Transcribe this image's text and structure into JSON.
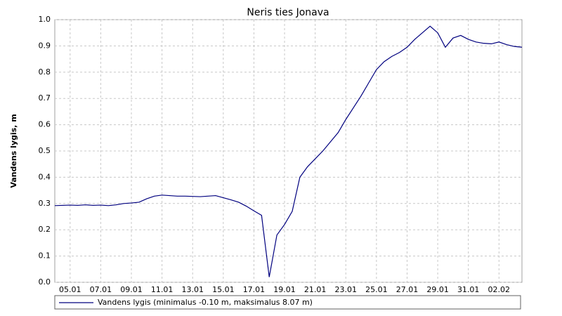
{
  "chart_data": {
    "type": "line",
    "title": "Neris ties Jonava",
    "y_label": "Vandens lygis, m",
    "categories": [
      null,
      null,
      "05.01",
      null,
      null,
      null,
      "07.01",
      null,
      null,
      null,
      "09.01",
      null,
      null,
      null,
      "11.01",
      null,
      null,
      null,
      "13.01",
      null,
      null,
      null,
      "15.01",
      null,
      null,
      null,
      "17.01",
      null,
      null,
      null,
      "19.01",
      null,
      null,
      null,
      "21.01",
      null,
      null,
      null,
      "23.01",
      null,
      null,
      null,
      "25.01",
      null,
      null,
      null,
      "27.01",
      null,
      null,
      null,
      "29.01",
      null,
      null,
      null,
      "31.01",
      null,
      null,
      null,
      "02.02",
      null,
      null,
      null
    ],
    "series": [
      {
        "name": "Vandens lygis (minimalus -0.10 m, maksimalus 8.07 m)",
        "color": "#00007f",
        "values": [
          0.292,
          0.293,
          0.294,
          0.293,
          0.295,
          0.293,
          0.294,
          0.292,
          0.295,
          0.3,
          0.302,
          0.305,
          0.318,
          0.328,
          0.332,
          0.33,
          0.328,
          0.328,
          0.327,
          0.326,
          0.328,
          0.33,
          0.322,
          0.314,
          0.305,
          0.29,
          0.272,
          0.255,
          0.02,
          0.18,
          0.22,
          0.27,
          0.4,
          0.44,
          0.47,
          0.5,
          0.535,
          0.57,
          0.62,
          0.665,
          0.71,
          0.76,
          0.81,
          0.84,
          0.86,
          0.875,
          0.895,
          0.925,
          0.95,
          0.975,
          0.95,
          0.895,
          0.93,
          0.94,
          0.925,
          0.915,
          0.91,
          0.908,
          0.915,
          0.905,
          0.898,
          0.895
        ]
      }
    ],
    "ylim": [
      0,
      1
    ],
    "yticks": [
      {
        "value": 0,
        "label": "0.0"
      },
      0.1,
      0.2,
      0.3,
      0.4,
      0.5,
      0.6,
      0.7,
      0.8,
      0.9,
      {
        "value": 1,
        "label": "1.0"
      }
    ],
    "grid": true
  }
}
